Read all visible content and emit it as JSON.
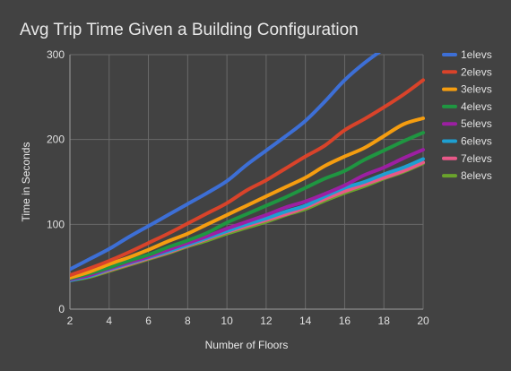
{
  "chart_data": {
    "type": "line",
    "title": "Avg Trip Time Given a Building Configuration",
    "xlabel": "Number of Floors",
    "ylabel": "Time in Seconds",
    "xlim": [
      2,
      20
    ],
    "ylim": [
      0,
      300
    ],
    "x_ticks": [
      2,
      4,
      6,
      8,
      10,
      12,
      14,
      16,
      18,
      20
    ],
    "y_ticks": [
      0,
      100,
      200,
      300
    ],
    "grid": true,
    "legend_position": "right",
    "background": "#424242",
    "x": [
      2,
      3,
      4,
      5,
      6,
      7,
      8,
      9,
      10,
      11,
      12,
      13,
      14,
      15,
      16,
      17,
      18,
      19,
      20
    ],
    "series": [
      {
        "name": "1elevs",
        "color": "#3d6fd6",
        "values": [
          47,
          59,
          71,
          85,
          98,
          111,
          124,
          137,
          151,
          170,
          187,
          204,
          222,
          245,
          270,
          290,
          307,
          null,
          null
        ]
      },
      {
        "name": "2elevs",
        "color": "#d9432a",
        "values": [
          40,
          48,
          57,
          67,
          78,
          89,
          101,
          113,
          125,
          140,
          152,
          166,
          180,
          193,
          211,
          224,
          238,
          253,
          270
        ]
      },
      {
        "name": "3elevs",
        "color": "#f59d10",
        "values": [
          37,
          44,
          53,
          61,
          70,
          80,
          89,
          100,
          111,
          122,
          133,
          144,
          155,
          169,
          180,
          190,
          204,
          218,
          225
        ]
      },
      {
        "name": "4elevs",
        "color": "#1f9641",
        "values": [
          36,
          42,
          49,
          57,
          64,
          73,
          81,
          90,
          102,
          112,
          122,
          132,
          143,
          154,
          163,
          176,
          187,
          198,
          208
        ]
      },
      {
        "name": "5elevs",
        "color": "#9c1fa2",
        "values": [
          35,
          40,
          48,
          55,
          62,
          70,
          78,
          86,
          95,
          103,
          111,
          120,
          127,
          136,
          146,
          158,
          167,
          178,
          188
        ]
      },
      {
        "name": "6elevs",
        "color": "#1e9fd1",
        "values": [
          34,
          39,
          47,
          54,
          61,
          68,
          76,
          84,
          92,
          100,
          107,
          115,
          122,
          133,
          143,
          150,
          159,
          167,
          177
        ]
      },
      {
        "name": "7elevs",
        "color": "#e85888",
        "values": [
          34,
          39,
          46,
          53,
          60,
          67,
          75,
          83,
          91,
          98,
          105,
          112,
          120,
          130,
          139,
          147,
          155,
          163,
          173
        ]
      },
      {
        "name": "8elevs",
        "color": "#6aa32c",
        "values": [
          34,
          38,
          45,
          52,
          59,
          66,
          74,
          81,
          89,
          96,
          103,
          111,
          118,
          128,
          137,
          145,
          154,
          162,
          172
        ]
      }
    ]
  }
}
